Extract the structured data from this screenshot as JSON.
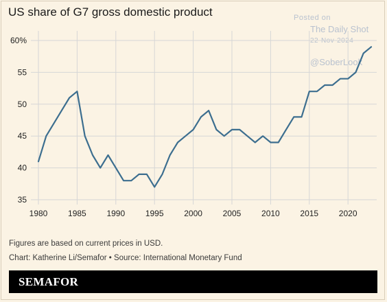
{
  "colors": {
    "background": "#fbf3e4",
    "line": "#3c6e8f",
    "grid": "#d6d6d6",
    "footer": "#000000"
  },
  "watermark": {
    "posted_on": "Posted on",
    "site": "The Daily Shot",
    "date": "22-Nov-2024",
    "handle": "@SoberLook"
  },
  "notes": {
    "prices": "Figures are based on current prices in USD.",
    "credit": "Chart: Katherine Li/Semafor • Source: International Monetary Fund"
  },
  "footer": {
    "brand": "SEMAFOR"
  },
  "chart_data": {
    "type": "line",
    "title": "US share of G7 gross domestic product",
    "xlabel": "",
    "ylabel": "",
    "xlim": [
      1979,
      2024
    ],
    "ylim": [
      35,
      61
    ],
    "x_ticks": [
      1980,
      1985,
      1990,
      1995,
      2000,
      2005,
      2010,
      2015,
      2020
    ],
    "y_ticks": [
      {
        "value": 35,
        "label": "35"
      },
      {
        "value": 40,
        "label": "40"
      },
      {
        "value": 45,
        "label": "45"
      },
      {
        "value": 50,
        "label": "50"
      },
      {
        "value": 55,
        "label": "55"
      },
      {
        "value": 60,
        "label": "60%"
      }
    ],
    "grid": true,
    "x": [
      1980,
      1981,
      1982,
      1983,
      1984,
      1985,
      1986,
      1987,
      1988,
      1989,
      1990,
      1991,
      1992,
      1993,
      1994,
      1995,
      1996,
      1997,
      1998,
      1999,
      2000,
      2001,
      2002,
      2003,
      2004,
      2005,
      2006,
      2007,
      2008,
      2009,
      2010,
      2011,
      2012,
      2013,
      2014,
      2015,
      2016,
      2017,
      2018,
      2019,
      2020,
      2021,
      2022,
      2023
    ],
    "y": [
      41,
      45,
      47,
      49,
      51,
      52,
      45,
      42,
      40,
      42,
      40,
      38,
      38,
      39,
      39,
      37,
      39,
      42,
      44,
      45,
      46,
      48,
      49,
      46,
      45,
      46,
      46,
      45,
      44,
      45,
      44,
      44,
      46,
      48,
      48,
      52,
      52,
      53,
      53,
      54,
      54,
      55,
      58,
      59
    ]
  }
}
